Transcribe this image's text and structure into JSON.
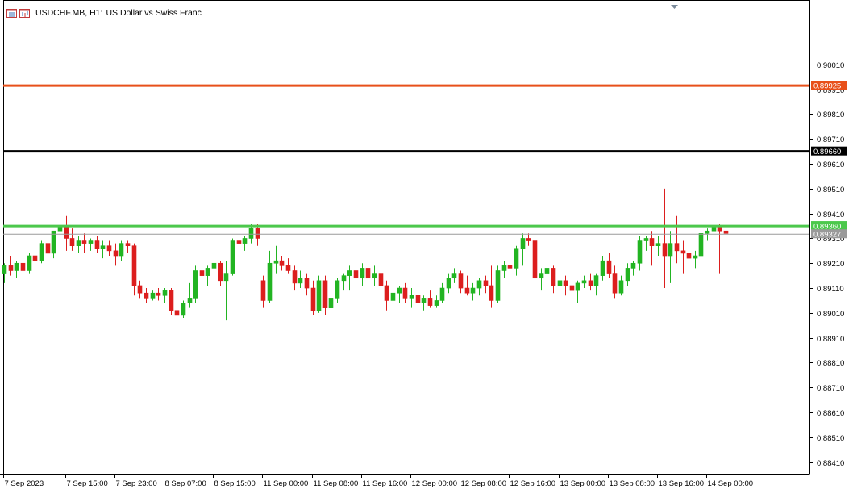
{
  "header": {
    "symbol": "USDCHF.MB, H1:",
    "description": "US Dollar vs Swiss Franc"
  },
  "icons": [
    "list-icon",
    "chart-window-icon"
  ],
  "colors": {
    "background": "#ffffff",
    "bull": "#22b422",
    "bear": "#dc1e1e",
    "resistance_line": "#e8501a",
    "pivot_line": "#000000",
    "support_line": "#4cc84c",
    "current_price_line": "#9a9a9a"
  },
  "chart_data": {
    "type": "candlestick",
    "title": "US Dollar vs Swiss Franc",
    "symbol": "USDCHF.MB",
    "timeframe": "H1",
    "ylim": [
      0.8836,
      0.9025
    ],
    "y_ticks": [
      "0.90010",
      "0.89910",
      "0.89810",
      "0.89710",
      "0.89610",
      "0.89510",
      "0.89410",
      "0.89310",
      "0.89210",
      "0.89110",
      "0.89010",
      "0.88910",
      "0.88810",
      "0.88710",
      "0.88610",
      "0.88510",
      "0.88410"
    ],
    "x_ticks": [
      {
        "label": "7 Sep 2023",
        "index": 0
      },
      {
        "label": "7 Sep 15:00",
        "index": 10
      },
      {
        "label": "7 Sep 23:00",
        "index": 18
      },
      {
        "label": "8 Sep 07:00",
        "index": 26
      },
      {
        "label": "8 Sep 15:00",
        "index": 34
      },
      {
        "label": "11 Sep 00:00",
        "index": 42
      },
      {
        "label": "11 Sep 08:00",
        "index": 50
      },
      {
        "label": "11 Sep 16:00",
        "index": 58
      },
      {
        "label": "12 Sep 00:00",
        "index": 66
      },
      {
        "label": "12 Sep 08:00",
        "index": 74
      },
      {
        "label": "12 Sep 16:00",
        "index": 82
      },
      {
        "label": "13 Sep 00:00",
        "index": 90
      },
      {
        "label": "13 Sep 08:00",
        "index": 98
      },
      {
        "label": "13 Sep 16:00",
        "index": 106
      },
      {
        "label": "14 Sep 00:00",
        "index": 114
      }
    ],
    "horizontal_lines": [
      {
        "name": "resistance",
        "price": 0.89925,
        "label": "0.89925",
        "color": "#e8501a"
      },
      {
        "name": "pivot",
        "price": 0.8966,
        "label": "0.89660",
        "color": "#000000"
      },
      {
        "name": "support",
        "price": 0.8936,
        "label": "0.89360",
        "color": "#4cc84c"
      },
      {
        "name": "current",
        "price": 0.89327,
        "label": "0.89327",
        "color": "#9a9a9a"
      }
    ],
    "ohlc": [
      [
        0.8917,
        0.8921,
        0.8913,
        0.892
      ],
      [
        0.892,
        0.8924,
        0.8916,
        0.8918
      ],
      [
        0.8918,
        0.8922,
        0.8915,
        0.8921
      ],
      [
        0.8921,
        0.8924,
        0.8917,
        0.8918
      ],
      [
        0.8918,
        0.8925,
        0.8917,
        0.8924
      ],
      [
        0.8924,
        0.8926,
        0.892,
        0.8922
      ],
      [
        0.8922,
        0.893,
        0.8921,
        0.8929
      ],
      [
        0.8929,
        0.893,
        0.8922,
        0.8925
      ],
      [
        0.8925,
        0.8934,
        0.8923,
        0.8934
      ],
      [
        0.8934,
        0.8937,
        0.893,
        0.8936
      ],
      [
        0.8936,
        0.894,
        0.8926,
        0.8931
      ],
      [
        0.8931,
        0.8935,
        0.8926,
        0.8928
      ],
      [
        0.8928,
        0.8932,
        0.8925,
        0.893
      ],
      [
        0.893,
        0.8933,
        0.8925,
        0.8929
      ],
      [
        0.8929,
        0.8931,
        0.8926,
        0.893
      ],
      [
        0.893,
        0.8932,
        0.8925,
        0.8927
      ],
      [
        0.8927,
        0.893,
        0.8923,
        0.8928
      ],
      [
        0.8928,
        0.893,
        0.8924,
        0.8926
      ],
      [
        0.8926,
        0.8929,
        0.892,
        0.8924
      ],
      [
        0.8924,
        0.893,
        0.8922,
        0.8929
      ],
      [
        0.8929,
        0.893,
        0.8925,
        0.8928
      ],
      [
        0.8928,
        0.8929,
        0.8908,
        0.8912
      ],
      [
        0.8912,
        0.8914,
        0.8907,
        0.8909
      ],
      [
        0.8909,
        0.8911,
        0.8905,
        0.8907
      ],
      [
        0.8907,
        0.891,
        0.8906,
        0.8909
      ],
      [
        0.8909,
        0.8911,
        0.8906,
        0.8908
      ],
      [
        0.8908,
        0.8911,
        0.8905,
        0.891
      ],
      [
        0.891,
        0.8911,
        0.89,
        0.8902
      ],
      [
        0.8902,
        0.8905,
        0.8894,
        0.89
      ],
      [
        0.89,
        0.8906,
        0.8899,
        0.8905
      ],
      [
        0.8905,
        0.8913,
        0.8903,
        0.8907
      ],
      [
        0.8907,
        0.892,
        0.8905,
        0.8918
      ],
      [
        0.8918,
        0.8924,
        0.8914,
        0.8916
      ],
      [
        0.8916,
        0.892,
        0.8912,
        0.8919
      ],
      [
        0.8919,
        0.8923,
        0.8908,
        0.8921
      ],
      [
        0.8921,
        0.8922,
        0.8912,
        0.8914
      ],
      [
        0.8914,
        0.8922,
        0.8898,
        0.8917
      ],
      [
        0.8917,
        0.8931,
        0.8916,
        0.893
      ],
      [
        0.893,
        0.8932,
        0.8925,
        0.8929
      ],
      [
        0.8929,
        0.8932,
        0.8926,
        0.8931
      ],
      [
        0.8931,
        0.8937,
        0.8929,
        0.8935
      ],
      [
        0.8935,
        0.8937,
        0.8928,
        0.8931
      ],
      [
        0.8914,
        0.8916,
        0.8903,
        0.8906
      ],
      [
        0.8906,
        0.8926,
        0.8905,
        0.8921
      ],
      [
        0.8921,
        0.8928,
        0.8917,
        0.8922
      ],
      [
        0.8922,
        0.8924,
        0.8918,
        0.892
      ],
      [
        0.892,
        0.8923,
        0.8917,
        0.8918
      ],
      [
        0.8918,
        0.892,
        0.891,
        0.8913
      ],
      [
        0.8913,
        0.8918,
        0.8911,
        0.8915
      ],
      [
        0.8915,
        0.8917,
        0.8908,
        0.8911
      ],
      [
        0.8911,
        0.8914,
        0.89,
        0.8902
      ],
      [
        0.8902,
        0.8916,
        0.8901,
        0.8914
      ],
      [
        0.8914,
        0.8916,
        0.89,
        0.8903
      ],
      [
        0.8903,
        0.8916,
        0.8896,
        0.8907
      ],
      [
        0.8907,
        0.8915,
        0.8905,
        0.8914
      ],
      [
        0.8914,
        0.8917,
        0.891,
        0.8916
      ],
      [
        0.8916,
        0.892,
        0.891,
        0.8918
      ],
      [
        0.8918,
        0.892,
        0.8913,
        0.8915
      ],
      [
        0.8915,
        0.8921,
        0.8912,
        0.8919
      ],
      [
        0.8919,
        0.8921,
        0.8913,
        0.8915
      ],
      [
        0.8915,
        0.892,
        0.8912,
        0.8917
      ],
      [
        0.8917,
        0.8924,
        0.8911,
        0.8912
      ],
      [
        0.8912,
        0.8914,
        0.8902,
        0.8906
      ],
      [
        0.8906,
        0.8911,
        0.8901,
        0.8909
      ],
      [
        0.8909,
        0.8912,
        0.8905,
        0.8911
      ],
      [
        0.8911,
        0.8913,
        0.8905,
        0.8907
      ],
      [
        0.8907,
        0.8911,
        0.8903,
        0.8908
      ],
      [
        0.8908,
        0.891,
        0.8897,
        0.8905
      ],
      [
        0.8905,
        0.8908,
        0.8902,
        0.8907
      ],
      [
        0.8907,
        0.891,
        0.8903,
        0.8904
      ],
      [
        0.8904,
        0.8908,
        0.8903,
        0.8906
      ],
      [
        0.8906,
        0.8913,
        0.8905,
        0.8911
      ],
      [
        0.8911,
        0.8917,
        0.8909,
        0.8915
      ],
      [
        0.8915,
        0.8919,
        0.8913,
        0.8917
      ],
      [
        0.8917,
        0.8918,
        0.8909,
        0.8911
      ],
      [
        0.8911,
        0.8916,
        0.8908,
        0.8909
      ],
      [
        0.8909,
        0.8913,
        0.8906,
        0.8911
      ],
      [
        0.8911,
        0.8915,
        0.8908,
        0.8914
      ],
      [
        0.8914,
        0.8916,
        0.8909,
        0.8912
      ],
      [
        0.8912,
        0.892,
        0.8903,
        0.8906
      ],
      [
        0.8906,
        0.892,
        0.8905,
        0.8918
      ],
      [
        0.8918,
        0.8922,
        0.8915,
        0.892
      ],
      [
        0.892,
        0.8924,
        0.8916,
        0.8919
      ],
      [
        0.8919,
        0.8928,
        0.8916,
        0.8927
      ],
      [
        0.8927,
        0.8933,
        0.892,
        0.8931
      ],
      [
        0.8931,
        0.8933,
        0.8928,
        0.893
      ],
      [
        0.893,
        0.8933,
        0.8913,
        0.8915
      ],
      [
        0.8915,
        0.8919,
        0.891,
        0.8917
      ],
      [
        0.8917,
        0.8922,
        0.8912,
        0.8919
      ],
      [
        0.8919,
        0.892,
        0.8909,
        0.8912
      ],
      [
        0.8912,
        0.8916,
        0.8908,
        0.8914
      ],
      [
        0.8914,
        0.8916,
        0.8908,
        0.8912
      ],
      [
        0.8912,
        0.8915,
        0.8884,
        0.891
      ],
      [
        0.891,
        0.8914,
        0.8905,
        0.8913
      ],
      [
        0.8913,
        0.8916,
        0.8911,
        0.8914
      ],
      [
        0.8914,
        0.8917,
        0.891,
        0.8912
      ],
      [
        0.8912,
        0.8917,
        0.8908,
        0.8916
      ],
      [
        0.8916,
        0.8924,
        0.8914,
        0.8922
      ],
      [
        0.8922,
        0.8925,
        0.8915,
        0.8917
      ],
      [
        0.8917,
        0.892,
        0.8907,
        0.8909
      ],
      [
        0.8909,
        0.8916,
        0.8908,
        0.8914
      ],
      [
        0.8914,
        0.8921,
        0.8912,
        0.8919
      ],
      [
        0.8919,
        0.8922,
        0.8916,
        0.8921
      ],
      [
        0.8921,
        0.8932,
        0.8918,
        0.893
      ],
      [
        0.893,
        0.8932,
        0.8926,
        0.8931
      ],
      [
        0.8931,
        0.8934,
        0.892,
        0.8928
      ],
      [
        0.8928,
        0.8932,
        0.8924,
        0.8929
      ],
      [
        0.8929,
        0.8951,
        0.8911,
        0.8924
      ],
      [
        0.8924,
        0.8934,
        0.8913,
        0.8929
      ],
      [
        0.8929,
        0.894,
        0.8921,
        0.8926
      ],
      [
        0.8926,
        0.893,
        0.8917,
        0.8925
      ],
      [
        0.8925,
        0.8928,
        0.8916,
        0.8923
      ],
      [
        0.8923,
        0.8926,
        0.8919,
        0.8924
      ],
      [
        0.8924,
        0.8935,
        0.8922,
        0.8933
      ],
      [
        0.8933,
        0.8935,
        0.893,
        0.8934
      ],
      [
        0.8934,
        0.8937,
        0.8931,
        0.8936
      ],
      [
        0.8936,
        0.8937,
        0.8917,
        0.8934
      ],
      [
        0.8934,
        0.8935,
        0.8931,
        0.8933
      ]
    ]
  }
}
